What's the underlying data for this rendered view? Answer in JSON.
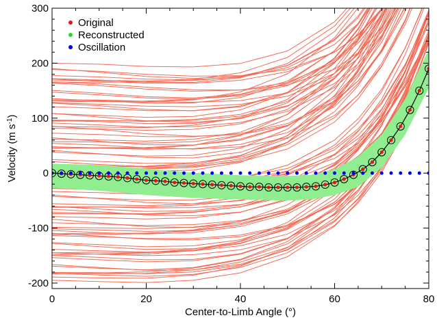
{
  "chart_data": {
    "type": "line",
    "title": "",
    "xlabel": "Center-to-Limb Angle (°)",
    "ylabel": "Velocity (m s",
    "ylabel_superscript": "-1",
    "ylabel_close": ")",
    "xlim": [
      0,
      80
    ],
    "ylim": [
      -210,
      300
    ],
    "x_ticks": [
      0,
      20,
      40,
      60,
      80
    ],
    "y_ticks": [
      -200,
      -100,
      0,
      100,
      200,
      300
    ],
    "x_tick_labels": [
      "0",
      "20",
      "40",
      "60",
      "80"
    ],
    "y_tick_labels": [
      "-200",
      "-100",
      "0",
      "100",
      "200",
      "300"
    ],
    "grid": false,
    "legend_position": "top-left",
    "legend": [
      "Original",
      "Reconstructed",
      "Oscillation"
    ],
    "colors": {
      "original": "#ee1111",
      "reconstructed": "#22dd22",
      "oscillation": "#0000ee",
      "realizations": "#f26a55",
      "band": "#90ee90"
    },
    "band": {
      "x": [
        0,
        10,
        20,
        30,
        40,
        50,
        55,
        60,
        65,
        70,
        75,
        80
      ],
      "lower": [
        -27,
        -32,
        -40,
        -45,
        -48,
        -50,
        -48,
        -40,
        -25,
        10,
        70,
        155
      ],
      "upper": [
        17,
        15,
        8,
        1,
        -4,
        -5,
        -3,
        7,
        30,
        70,
        135,
        225
      ]
    },
    "series": [
      {
        "name": "Original",
        "x": [
          0,
          2,
          4,
          6,
          8,
          10,
          12,
          14,
          16,
          18,
          20,
          22,
          24,
          26,
          28,
          30,
          32,
          34,
          36,
          38,
          40,
          42,
          44,
          46,
          48,
          50,
          52,
          54,
          56,
          58,
          60,
          62,
          64,
          66,
          68,
          70,
          72,
          74,
          76,
          78,
          80
        ],
        "y": [
          0,
          -1,
          -2,
          -3,
          -4,
          -5,
          -6,
          -7,
          -9,
          -11,
          -13,
          -14,
          -15,
          -17,
          -18,
          -19,
          -20,
          -21,
          -22,
          -23,
          -24,
          -25,
          -25,
          -26,
          -26,
          -26,
          -26,
          -25,
          -24,
          -21,
          -17,
          -11,
          -3,
          7,
          20,
          38,
          60,
          85,
          115,
          150,
          190
        ]
      },
      {
        "name": "Reconstructed",
        "x": [
          0,
          2,
          4,
          6,
          8,
          10,
          12,
          14,
          16,
          18,
          20,
          22,
          24,
          26,
          28,
          30,
          32,
          34,
          36,
          38,
          40,
          42,
          44,
          46,
          48,
          50,
          52,
          54,
          56,
          58,
          60,
          62,
          64,
          66,
          68,
          70,
          72,
          74,
          76,
          78,
          80
        ],
        "y": [
          0,
          -1,
          -2,
          -3,
          -4,
          -5,
          -6,
          -7,
          -9,
          -11,
          -13,
          -14,
          -15,
          -17,
          -18,
          -19,
          -20,
          -21,
          -22,
          -23,
          -24,
          -25,
          -25,
          -26,
          -26,
          -26,
          -26,
          -25,
          -24,
          -21,
          -17,
          -11,
          -3,
          7,
          20,
          38,
          60,
          85,
          115,
          150,
          190
        ]
      },
      {
        "name": "Oscillation",
        "x": [
          0,
          2,
          4,
          6,
          8,
          10,
          12,
          14,
          16,
          18,
          20,
          22,
          24,
          26,
          28,
          30,
          32,
          34,
          36,
          38,
          40,
          42,
          44,
          46,
          48,
          50,
          52,
          54,
          56,
          58,
          60,
          62,
          64,
          66,
          68,
          70,
          72,
          74,
          76,
          78,
          80
        ],
        "y": [
          0,
          0,
          0,
          0,
          0,
          0,
          0,
          0,
          0,
          0,
          0,
          0,
          0,
          0,
          0,
          0,
          0,
          0,
          0,
          0,
          0,
          0,
          0,
          0,
          0,
          0,
          0,
          0,
          0,
          0,
          0,
          0,
          0,
          0,
          0,
          0,
          0,
          0,
          0,
          0,
          0
        ]
      }
    ],
    "realizations": {
      "x": [
        0,
        10,
        20,
        30,
        40,
        50,
        60,
        65,
        70,
        75,
        80
      ],
      "count": 90,
      "offset_range": [
        -195,
        195
      ],
      "upper_start": 192,
      "lower_start": -196
    }
  }
}
